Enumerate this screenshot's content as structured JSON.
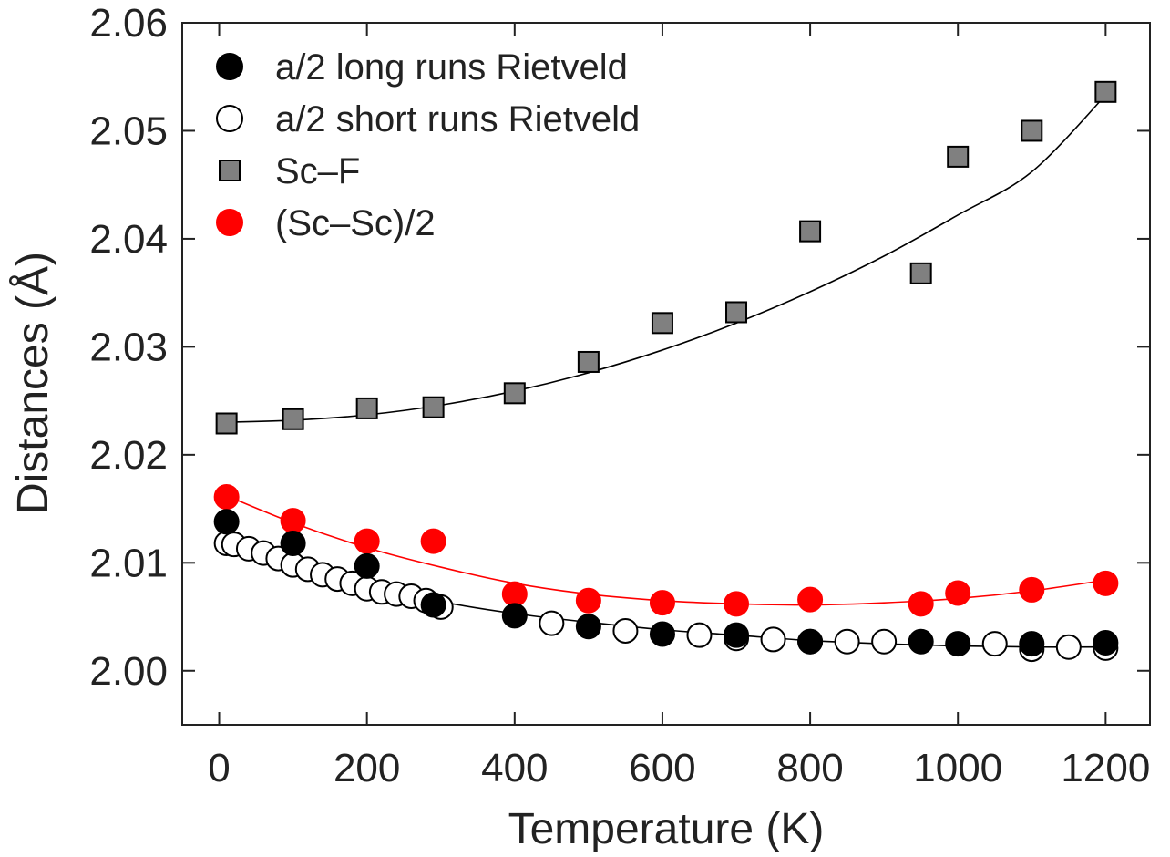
{
  "chart_data": {
    "type": "scatter",
    "xlabel": "Temperature (K)",
    "ylabel": "Distances (Å)",
    "xlim": [
      -50,
      1260
    ],
    "ylim": [
      1.995,
      2.06
    ],
    "x_ticks": [
      0,
      200,
      400,
      600,
      800,
      1000,
      1200
    ],
    "x_tick_labels": [
      "0",
      "200",
      "400",
      "600",
      "800",
      "1000",
      "1200"
    ],
    "y_ticks": [
      2.0,
      2.01,
      2.02,
      2.03,
      2.04,
      2.05,
      2.06
    ],
    "y_tick_labels": [
      "2.00",
      "2.01",
      "2.02",
      "2.03",
      "2.04",
      "2.05",
      "2.06"
    ],
    "grid": false,
    "legend_position": "top-left",
    "series": [
      {
        "name": "a/2 long runs Rietveld",
        "marker": "circle",
        "fill": "#000000",
        "stroke": "#000000",
        "x": [
          10,
          100,
          200,
          290,
          400,
          500,
          600,
          700,
          800,
          950,
          1000,
          1100,
          1200
        ],
        "y": [
          2.0138,
          2.0118,
          2.0097,
          2.0061,
          2.0051,
          2.0041,
          2.0034,
          2.0033,
          2.0027,
          2.0027,
          2.0025,
          2.0025,
          2.0026
        ]
      },
      {
        "name": "a/2 short runs Rietveld",
        "marker": "circle",
        "fill": "#ffffff",
        "stroke": "#000000",
        "x": [
          10,
          20,
          40,
          60,
          80,
          100,
          120,
          140,
          160,
          180,
          200,
          220,
          240,
          260,
          280,
          300,
          450,
          550,
          650,
          700,
          750,
          800,
          850,
          900,
          1050,
          1100,
          1150,
          1200
        ],
        "y": [
          2.0118,
          2.0117,
          2.0113,
          2.0109,
          2.0104,
          2.0098,
          2.0094,
          2.0089,
          2.0085,
          2.0081,
          2.0076,
          2.0073,
          2.0071,
          2.0069,
          2.0065,
          2.0059,
          2.0044,
          2.0037,
          2.0033,
          2.003,
          2.0029,
          2.0027,
          2.0027,
          2.0027,
          2.0025,
          2.002,
          2.0022,
          2.0021
        ]
      },
      {
        "name": "Sc–F",
        "marker": "square",
        "fill": "#808080",
        "stroke": "#000000",
        "x": [
          10,
          100,
          200,
          290,
          400,
          500,
          600,
          700,
          800,
          950,
          1000,
          1100,
          1200
        ],
        "y": [
          2.0229,
          2.0233,
          2.0243,
          2.0244,
          2.0257,
          2.0286,
          2.0322,
          2.0332,
          2.0407,
          2.0368,
          2.0476,
          2.05,
          2.0536
        ]
      },
      {
        "name": "(Sc–Sc)/2",
        "marker": "circle",
        "fill": "#ff0000",
        "stroke": "#ff0000",
        "x": [
          10,
          100,
          200,
          290,
          400,
          500,
          600,
          700,
          800,
          950,
          1000,
          1100,
          1200
        ],
        "y": [
          2.0161,
          2.0139,
          2.012,
          2.012,
          2.0071,
          2.0065,
          2.0063,
          2.0062,
          2.0066,
          2.0062,
          2.0072,
          2.0075,
          2.0081
        ]
      }
    ],
    "fit_curves": [
      {
        "color": "#000000",
        "x": [
          0,
          100,
          200,
          300,
          400,
          500,
          600,
          700,
          800,
          900,
          1000,
          1100,
          1200
        ],
        "y": [
          2.023,
          2.0232,
          2.0237,
          2.0246,
          2.0259,
          2.0276,
          2.0297,
          2.0322,
          2.0351,
          2.0384,
          2.0422,
          2.0462,
          2.0533
        ]
      },
      {
        "color": "#ff0000",
        "x": [
          0,
          100,
          200,
          300,
          400,
          500,
          600,
          700,
          800,
          900,
          1000,
          1100,
          1200
        ],
        "y": [
          2.0165,
          2.0137,
          2.0114,
          2.0096,
          2.0081,
          2.0071,
          2.0065,
          2.0062,
          2.0061,
          2.0063,
          2.0067,
          2.0074,
          2.0084
        ]
      },
      {
        "color": "#000000",
        "x": [
          0,
          100,
          200,
          300,
          400,
          500,
          600,
          700,
          800,
          900,
          1000,
          1100,
          1200
        ],
        "y": [
          2.0121,
          2.0098,
          2.0079,
          2.0064,
          2.0053,
          2.0045,
          2.0038,
          2.0033,
          2.0028,
          2.0025,
          2.0023,
          2.0022,
          2.0022
        ]
      }
    ]
  }
}
